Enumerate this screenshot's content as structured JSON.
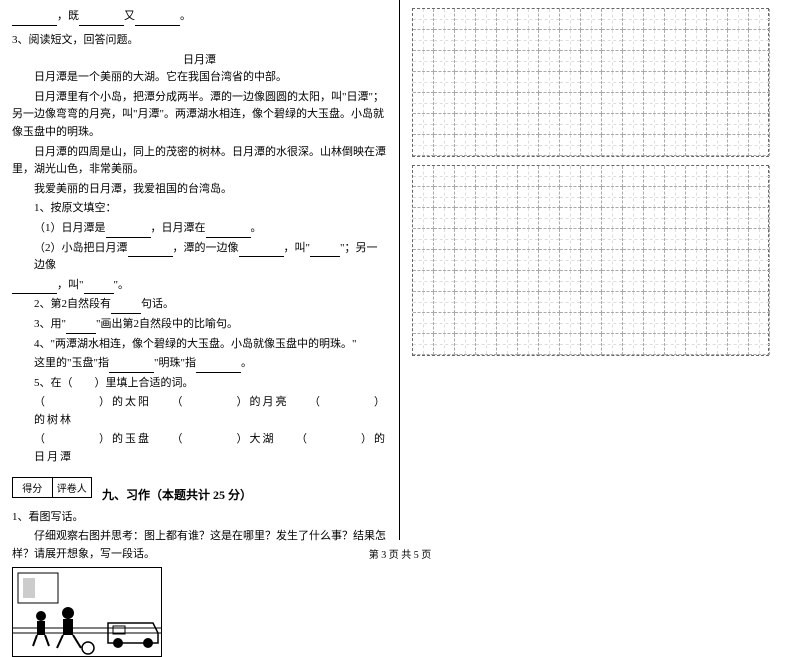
{
  "intro": {
    "line1_prefix": "",
    "line1_mid": "，既",
    "line1_mid2": "又",
    "line1_end": "。"
  },
  "reading": {
    "q_num": "3、阅读短文，回答问题。",
    "title": "日月潭",
    "p1": "日月潭是一个美丽的大湖。它在我国台湾省的中部。",
    "p2": "日月潭里有个小岛，把潭分成两半。潭的一边像圆圆的太阳，叫\"日潭\"；另一边像弯弯的月亮，叫\"月潭\"。两潭湖水相连，像个碧绿的大玉盘。小岛就像玉盘中的明珠。",
    "p3": "日月潭的四周是山，同上的茂密的树林。日月潭的水很深。山林倒映在潭里，湖光山色，非常美丽。",
    "p4": "我爱美丽的日月潭，我爱祖国的台湾岛。",
    "sub1": "1、按原文填空：",
    "sub1_1a": "（1）日月潭是",
    "sub1_1b": "，日月潭在",
    "sub1_1c": "。",
    "sub1_2a": "（2）小岛把日月潭",
    "sub1_2b": "，潭的一边像",
    "sub1_2c": "，叫\"",
    "sub1_2d": "\"；另一边像",
    "sub1_2e": "，叫\"",
    "sub1_2f": "\"。",
    "sub2a": "2、第2自然段有",
    "sub2b": "句话。",
    "sub3a": "3、用\"",
    "sub3b": "\"画出第2自然段中的比喻句。",
    "sub4a": "4、\"两潭湖水相连，像个碧绿的大玉盘。小岛就像玉盘中的明珠。\"",
    "sub4b": "这里的\"玉盘\"指",
    "sub4c": "\"明珠\"指",
    "sub4d": "。",
    "sub5": "5、在（　　）里填上合适的词。",
    "row1_a": "（　　　　）的太阳",
    "row1_b": "（　　　　）的月亮",
    "row1_c": "（　　　　）的树林",
    "row2_a": "（　　　　）的玉盘",
    "row2_b": "（　　　　）大湖",
    "row2_c": "（　　　　）的日月潭"
  },
  "score_box": {
    "c1": "得分",
    "c2": "评卷人"
  },
  "section9": {
    "title": "九、习作（本题共计 25 分）",
    "q1": "1、看图写话。",
    "q1_desc": "仔细观察右图并思考：图上都有谁？这是在哪里？发生了什么事？结果怎样？请展开想象，写一段话。"
  },
  "grid": {
    "rows1": 7,
    "cols": 17,
    "rows2": 9,
    "cell_size": 21,
    "border_color": "#666666",
    "inner_color": "#aaaaaa"
  },
  "footer": "第 3 页 共 5 页"
}
